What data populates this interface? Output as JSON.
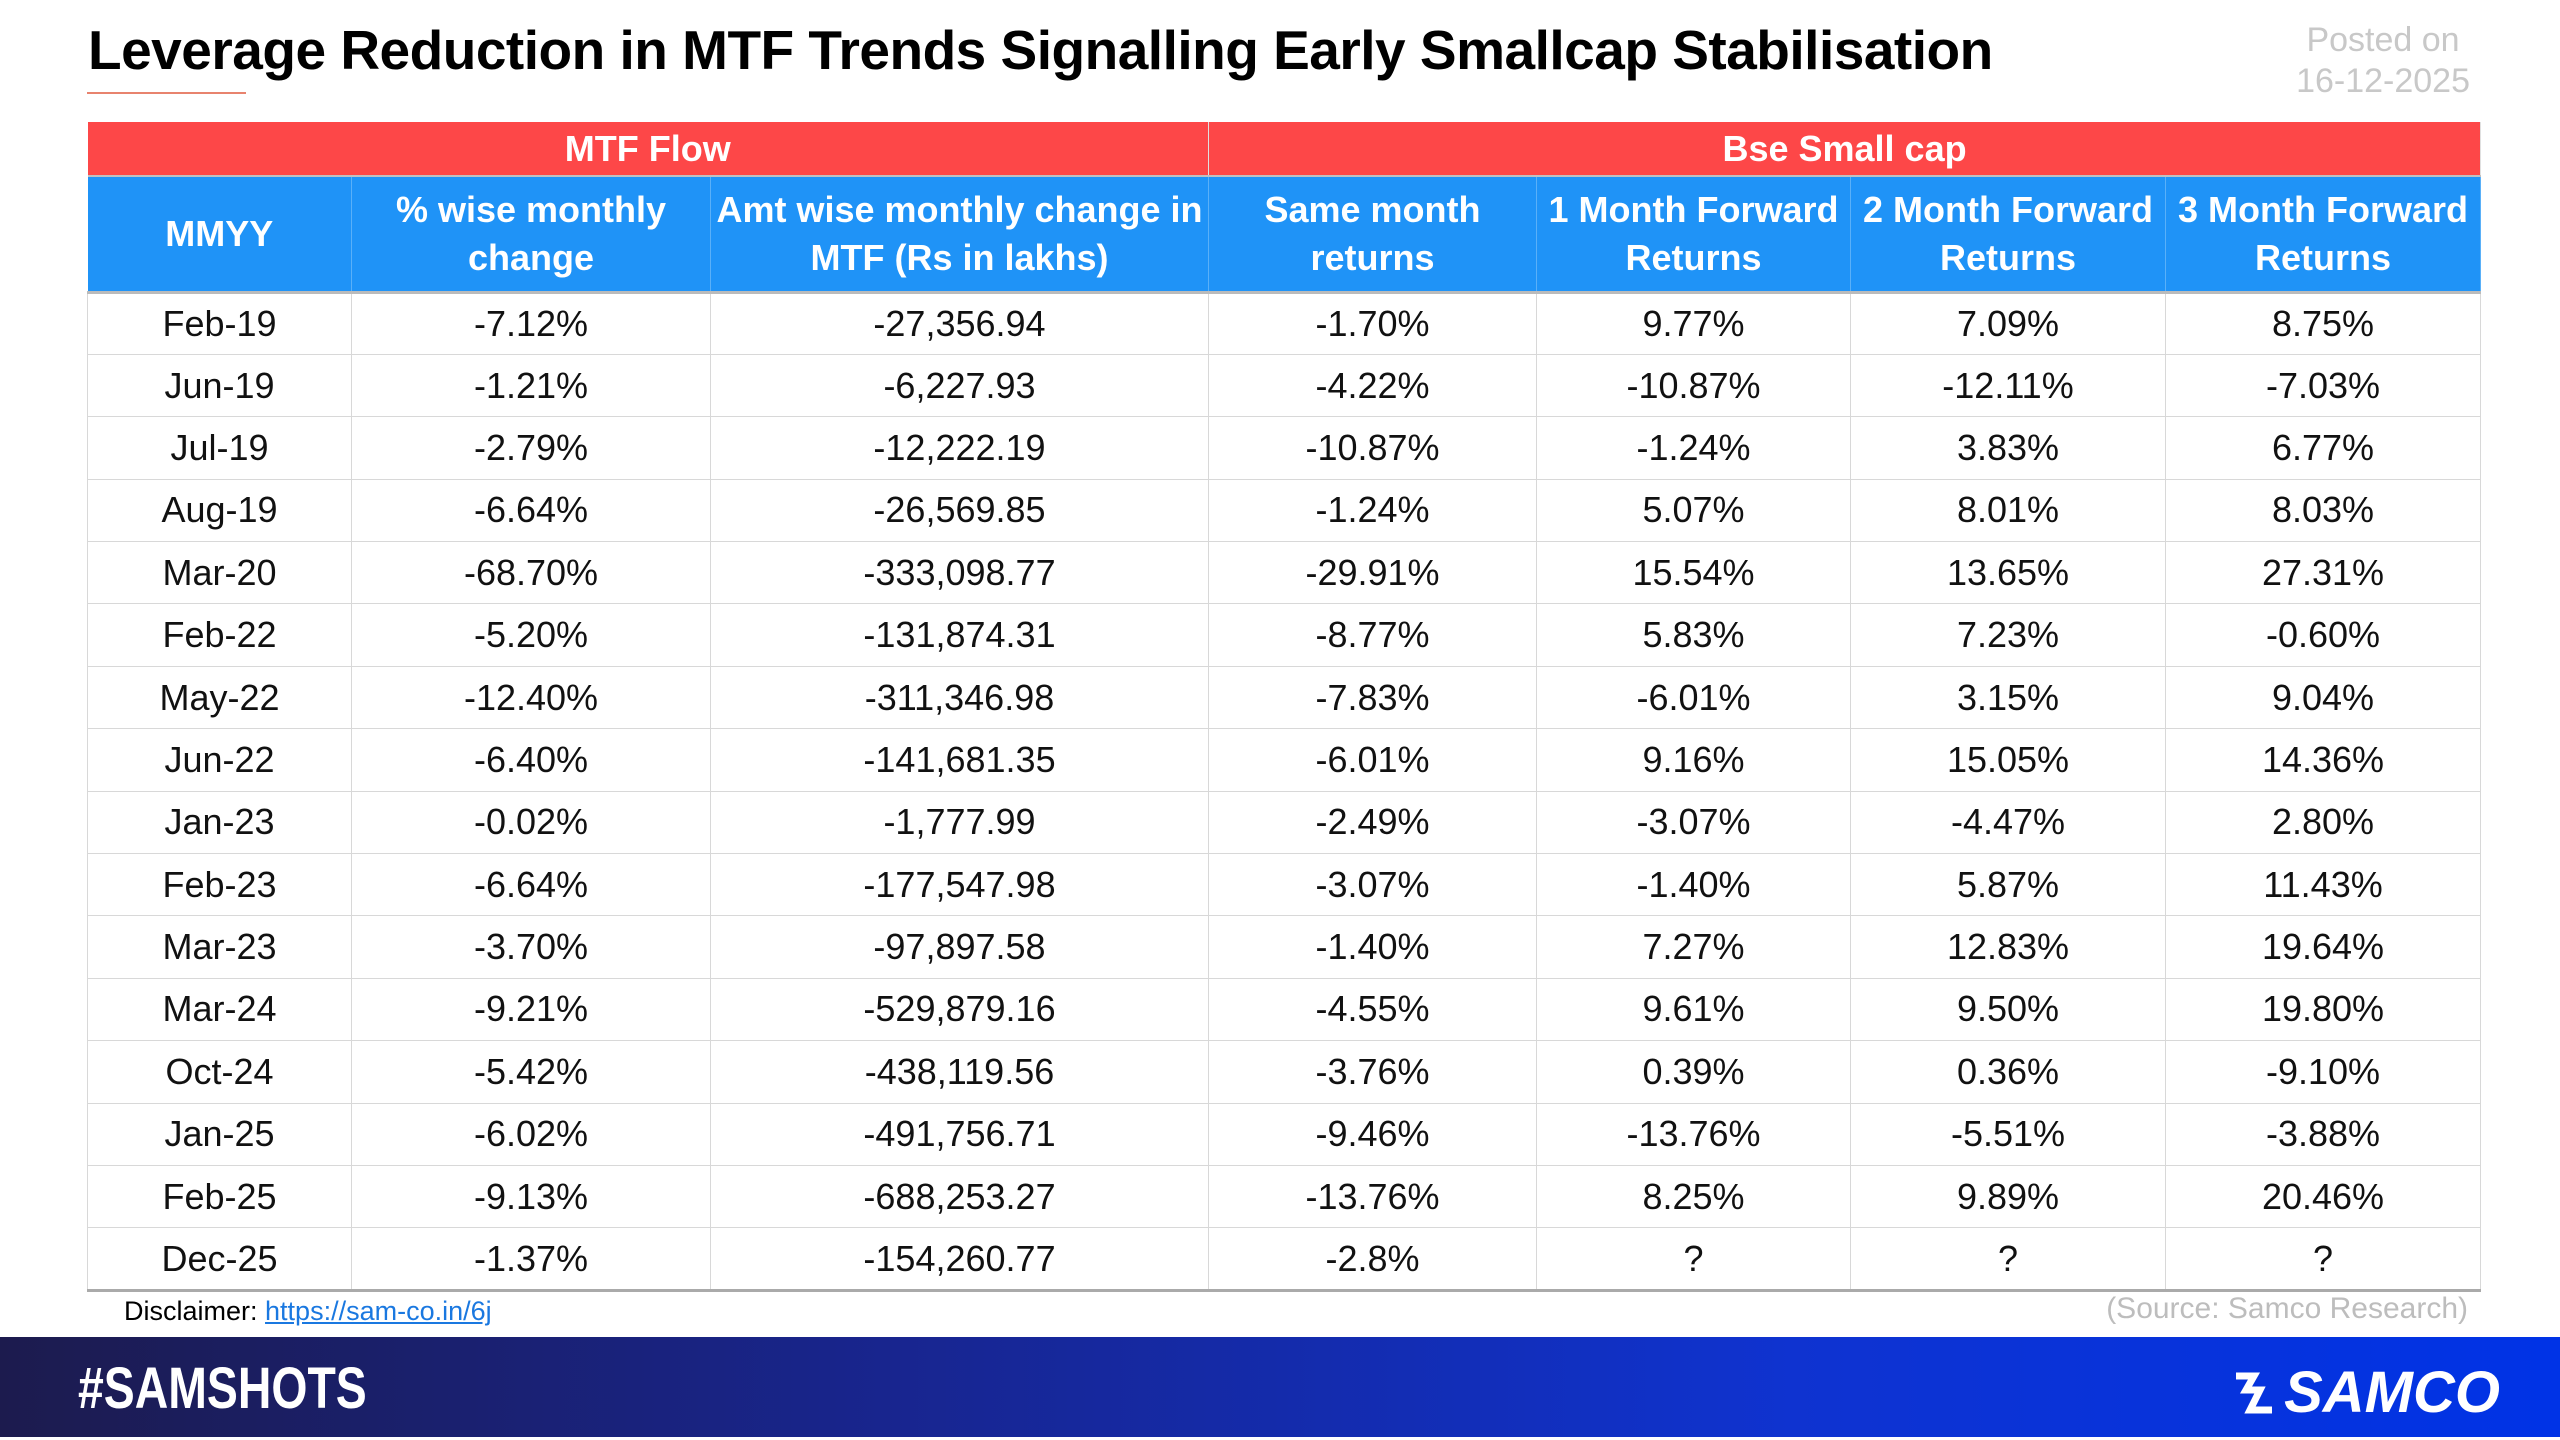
{
  "title": "Leverage Reduction in MTF Trends Signalling Early Smallcap Stabilisation",
  "posted": {
    "label": "Posted on",
    "date": "16-12-2025"
  },
  "table": {
    "groups": [
      "MTF Flow",
      "Bse Small cap"
    ],
    "headers": [
      "MMYY",
      "% wise monthly change",
      "Amt wise monthly change in MTF (Rs in lakhs)",
      "Same month returns",
      "1 Month Forward Returns",
      "2 Month Forward Returns",
      "3 Month Forward Returns"
    ],
    "rows": [
      [
        "Feb-19",
        "-7.12%",
        "-27,356.94",
        "-1.70%",
        "9.77%",
        "7.09%",
        "8.75%"
      ],
      [
        "Jun-19",
        "-1.21%",
        "-6,227.93",
        "-4.22%",
        "-10.87%",
        "-12.11%",
        "-7.03%"
      ],
      [
        "Jul-19",
        "-2.79%",
        "-12,222.19",
        "-10.87%",
        "-1.24%",
        "3.83%",
        "6.77%"
      ],
      [
        "Aug-19",
        "-6.64%",
        "-26,569.85",
        "-1.24%",
        "5.07%",
        "8.01%",
        "8.03%"
      ],
      [
        "Mar-20",
        "-68.70%",
        "-333,098.77",
        "-29.91%",
        "15.54%",
        "13.65%",
        "27.31%"
      ],
      [
        "Feb-22",
        "-5.20%",
        "-131,874.31",
        "-8.77%",
        "5.83%",
        "7.23%",
        "-0.60%"
      ],
      [
        "May-22",
        "-12.40%",
        "-311,346.98",
        "-7.83%",
        "-6.01%",
        "3.15%",
        "9.04%"
      ],
      [
        "Jun-22",
        "-6.40%",
        "-141,681.35",
        "-6.01%",
        "9.16%",
        "15.05%",
        "14.36%"
      ],
      [
        "Jan-23",
        "-0.02%",
        "-1,777.99",
        "-2.49%",
        "-3.07%",
        "-4.47%",
        "2.80%"
      ],
      [
        "Feb-23",
        "-6.64%",
        "-177,547.98",
        "-3.07%",
        "-1.40%",
        "5.87%",
        "11.43%"
      ],
      [
        "Mar-23",
        "-3.70%",
        "-97,897.58",
        "-1.40%",
        "7.27%",
        "12.83%",
        "19.64%"
      ],
      [
        "Mar-24",
        "-9.21%",
        "-529,879.16",
        "-4.55%",
        "9.61%",
        "9.50%",
        "19.80%"
      ],
      [
        "Oct-24",
        "-5.42%",
        "-438,119.56",
        "-3.76%",
        "0.39%",
        "0.36%",
        "-9.10%"
      ],
      [
        "Jan-25",
        "-6.02%",
        "-491,756.71",
        "-9.46%",
        "-13.76%",
        "-5.51%",
        "-3.88%"
      ],
      [
        "Feb-25",
        "-9.13%",
        "-688,253.27",
        "-13.76%",
        "8.25%",
        "9.89%",
        "20.46%"
      ],
      [
        "Dec-25",
        "-1.37%",
        "-154,260.77",
        "-2.8%",
        "?",
        "?",
        "?"
      ]
    ]
  },
  "disclaimer": {
    "label": "Disclaimer:",
    "link": "https://sam-co.in/6j"
  },
  "source": "(Source: Samco Research)",
  "footer": {
    "hashtag": "#SAMSHOTS",
    "logo": "SAMCO"
  },
  "colors": {
    "group_header": "#fd4748",
    "column_header": "#1f93f7",
    "footer": "#0f33d0"
  }
}
